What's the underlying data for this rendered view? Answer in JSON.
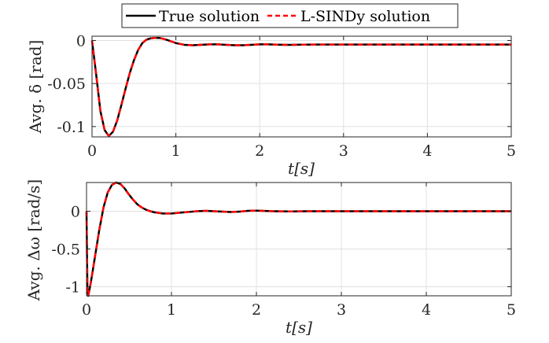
{
  "legend": {
    "placement": "top-center",
    "entries": [
      {
        "label": "True solution",
        "color": "#000000",
        "style": "solid"
      },
      {
        "label": "L-SINDy solution",
        "color": "#ff0000",
        "style": "dashed"
      }
    ]
  },
  "chart_data": [
    {
      "type": "line",
      "title": "",
      "xlabel": "t[s]",
      "ylabel": "Avg. δ [rad]",
      "xlim": [
        0,
        5
      ],
      "ylim": [
        -0.112,
        0.005
      ],
      "grid": true,
      "xticks": [
        0,
        1,
        2,
        3,
        4,
        5
      ],
      "xtick_labels": [
        "0",
        "1",
        "2",
        "3",
        "4",
        "5"
      ],
      "yticks": [
        0,
        -0.05,
        -0.1
      ],
      "ytick_labels": [
        "0",
        "-0.05",
        "-0.1"
      ],
      "series": [
        {
          "name": "True solution",
          "color": "#000000",
          "x": [
            0,
            0.05,
            0.1,
            0.15,
            0.2,
            0.25,
            0.3,
            0.35,
            0.4,
            0.45,
            0.5,
            0.55,
            0.6,
            0.65,
            0.7,
            0.75,
            0.8,
            0.85,
            0.9,
            1.0,
            1.1,
            1.2,
            1.3,
            1.4,
            1.5,
            1.6,
            1.7,
            1.8,
            1.9,
            2.0,
            2.1,
            2.2,
            2.3,
            2.4,
            2.5,
            2.7,
            3.0,
            3.5,
            4.0,
            4.5,
            5.0
          ],
          "y": [
            0,
            -0.04,
            -0.082,
            -0.104,
            -0.111,
            -0.106,
            -0.093,
            -0.075,
            -0.056,
            -0.038,
            -0.023,
            -0.011,
            -0.003,
            0.001,
            0.0025,
            0.003,
            0.003,
            0.002,
            0.0005,
            -0.003,
            -0.005,
            -0.0055,
            -0.005,
            -0.0045,
            -0.0045,
            -0.005,
            -0.0055,
            -0.0055,
            -0.005,
            -0.0045,
            -0.0045,
            -0.0048,
            -0.005,
            -0.005,
            -0.0048,
            -0.0047,
            -0.0047,
            -0.0047,
            -0.0047,
            -0.0047,
            -0.0047
          ]
        },
        {
          "name": "L-SINDy solution",
          "color": "#ff0000",
          "x": [
            0,
            0.05,
            0.1,
            0.15,
            0.2,
            0.25,
            0.3,
            0.35,
            0.4,
            0.45,
            0.5,
            0.55,
            0.6,
            0.65,
            0.7,
            0.75,
            0.8,
            0.85,
            0.9,
            1.0,
            1.1,
            1.2,
            1.3,
            1.4,
            1.5,
            1.6,
            1.7,
            1.8,
            1.9,
            2.0,
            2.1,
            2.2,
            2.3,
            2.4,
            2.5,
            2.7,
            3.0,
            3.5,
            4.0,
            4.5,
            5.0
          ],
          "y": [
            0,
            -0.04,
            -0.082,
            -0.104,
            -0.111,
            -0.106,
            -0.093,
            -0.075,
            -0.056,
            -0.038,
            -0.023,
            -0.011,
            -0.003,
            0.001,
            0.0025,
            0.003,
            0.003,
            0.002,
            0.0005,
            -0.003,
            -0.005,
            -0.0055,
            -0.005,
            -0.0045,
            -0.0045,
            -0.005,
            -0.0055,
            -0.0055,
            -0.005,
            -0.0045,
            -0.0045,
            -0.0048,
            -0.005,
            -0.005,
            -0.0048,
            -0.0047,
            -0.0047,
            -0.0047,
            -0.0047,
            -0.0047,
            -0.0047
          ]
        }
      ]
    },
    {
      "type": "line",
      "title": "",
      "xlabel": "t[s]",
      "ylabel": "Avg. Δω [rad/s]",
      "xlim": [
        0,
        5
      ],
      "ylim": [
        -1.12,
        0.38
      ],
      "grid": true,
      "xticks": [
        0,
        1,
        2,
        3,
        4,
        5
      ],
      "xtick_labels": [
        "0",
        "1",
        "2",
        "3",
        "4",
        "5"
      ],
      "yticks": [
        0,
        -0.5,
        -1
      ],
      "ytick_labels": [
        "0",
        "-0.5",
        "-1"
      ],
      "series": [
        {
          "name": "True solution",
          "color": "#000000",
          "x": [
            0,
            0.01,
            0.02,
            0.05,
            0.1,
            0.15,
            0.2,
            0.25,
            0.3,
            0.35,
            0.4,
            0.45,
            0.5,
            0.55,
            0.6,
            0.65,
            0.7,
            0.75,
            0.8,
            0.9,
            1.0,
            1.1,
            1.2,
            1.3,
            1.4,
            1.5,
            1.6,
            1.7,
            1.8,
            1.9,
            2.0,
            2.1,
            2.2,
            2.4,
            2.6,
            3.0,
            3.5,
            4.0,
            5.0
          ],
          "y": [
            0,
            -1.0,
            -1.12,
            -0.95,
            -0.6,
            -0.25,
            0.05,
            0.25,
            0.35,
            0.38,
            0.36,
            0.3,
            0.22,
            0.15,
            0.09,
            0.05,
            0.02,
            0.0,
            -0.015,
            -0.03,
            -0.03,
            -0.02,
            -0.01,
            0.0,
            0.005,
            0.0,
            -0.005,
            -0.01,
            -0.005,
            0.005,
            0.008,
            0.004,
            0.0,
            -0.003,
            0.0,
            0.0,
            0.0,
            0.0,
            0.0
          ]
        },
        {
          "name": "L-SINDy solution",
          "color": "#ff0000",
          "x": [
            0,
            0.01,
            0.02,
            0.05,
            0.1,
            0.15,
            0.2,
            0.25,
            0.3,
            0.35,
            0.4,
            0.45,
            0.5,
            0.55,
            0.6,
            0.65,
            0.7,
            0.75,
            0.8,
            0.9,
            1.0,
            1.1,
            1.2,
            1.3,
            1.4,
            1.5,
            1.6,
            1.7,
            1.8,
            1.9,
            2.0,
            2.1,
            2.2,
            2.4,
            2.6,
            3.0,
            3.5,
            4.0,
            5.0
          ],
          "y": [
            0,
            -1.0,
            -1.12,
            -0.95,
            -0.6,
            -0.25,
            0.05,
            0.25,
            0.35,
            0.38,
            0.36,
            0.3,
            0.22,
            0.15,
            0.09,
            0.05,
            0.02,
            0.0,
            -0.015,
            -0.03,
            -0.03,
            -0.02,
            -0.01,
            0.0,
            0.005,
            0.0,
            -0.005,
            -0.01,
            -0.005,
            0.005,
            0.008,
            0.004,
            0.0,
            -0.003,
            0.0,
            0.0,
            0.0,
            0.0,
            0.0
          ]
        }
      ]
    }
  ]
}
